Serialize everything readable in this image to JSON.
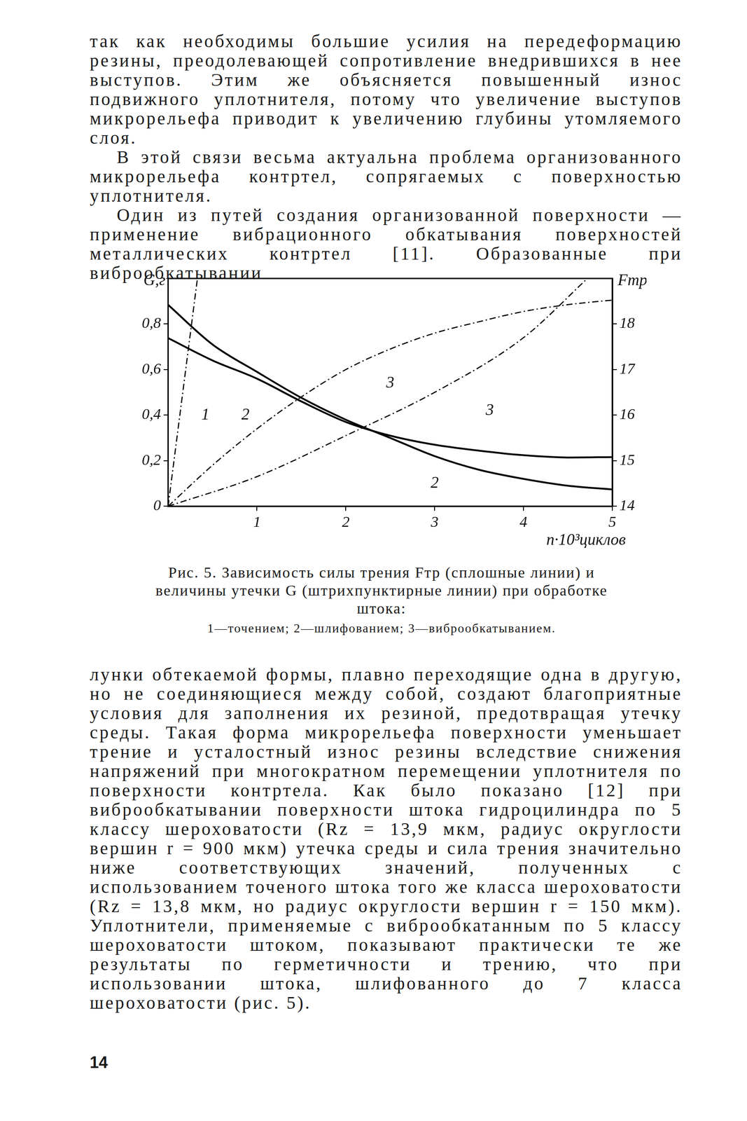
{
  "text": {
    "before": [
      "так как необходимы большие усилия на передеформацию резины, преодолевающей сопротивление внедрившихся в нее выступов. Этим же объясняется повышенный износ подвижного уплотнителя, потому что увеличение выступов микрорельефа приводит к увеличению глубины утомляемого слоя.",
      "В этой связи весьма актуальна проблема организованного микрорельефа контртел, сопрягаемых с поверхностью уплотнителя.",
      "Один из путей создания организованной поверхности — применение вибрационного обкатывания поверхностей металлических контртел [11]. Образованные при виброобкатывании"
    ],
    "after": [
      "лунки обтекаемой формы, плавно переходящие одна в другую, но не соединяющиеся между собой, создают благоприятные условия для заполнения их резиной, предотвращая утечку среды. Такая форма микрорельефа поверхности уменьшает трение и усталостный износ резины вследствие снижения напряжений при многократном перемещении уплотнителя по поверхности контртела. Как было показано [12] при виброобкатывании поверхности штока гидроцилиндра по 5 классу шероховатости (Rz = 13,9 мкм, радиус округлости вершин r = 900 мкм) утечка среды и сила трения значительно ниже соответствующих значений, полученных с использованием точеного штока того же класса шероховатости (Rz = 13,8 мкм, но радиус округлости вершин r = 150 мкм). Уплотнители, применяемые с виброобкатанным по 5 классу шероховатости штоком, показывают практически те же результаты по герметичности и трению, что при использовании штока, шлифованного до 7 класса шероховатости (рис. 5)."
    ],
    "page_number": "14"
  },
  "figure": {
    "caption": "Рис. 5. Зависимость силы трения Fтр (сплошные линии) и величины утечки G (штрихпунктирные линии) при обработке штока:",
    "key": "1—точением; 2—шлифованием; 3—виброобкатыванием."
  },
  "chart_data": {
    "type": "line",
    "xlabel": "n·10³циклов",
    "ylabel": "G,г",
    "y2label": "Fтр,Н",
    "xlim": [
      0,
      5
    ],
    "xticks": [
      1,
      2,
      3,
      4,
      5
    ],
    "ylim": [
      0,
      1
    ],
    "yticks": [
      0,
      {
        "value": 0.2,
        "label": "0,2"
      },
      {
        "value": 0.4,
        "label": "0,4"
      },
      {
        "value": 0.6,
        "label": "0,6"
      },
      {
        "value": 0.8,
        "label": "0,8"
      }
    ],
    "y2lim": [
      14,
      19
    ],
    "y2ticks": [
      14,
      15,
      16,
      17,
      18
    ],
    "grid": false,
    "series": [
      {
        "color": "#000000",
        "line_style": "dashdot",
        "axis": "y",
        "x": [
          0,
          0.33
        ],
        "values": [
          0,
          1.0
        ]
      },
      {
        "color": "#000000",
        "line_style": "dashdot",
        "axis": "y",
        "x": [
          0,
          0.5,
          1,
          1.5,
          2,
          2.5,
          3,
          3.5,
          4,
          4.5,
          5
        ],
        "values": [
          0,
          0.18,
          0.34,
          0.48,
          0.6,
          0.69,
          0.76,
          0.81,
          0.855,
          0.885,
          0.905
        ]
      },
      {
        "color": "#000000",
        "line_style": "dashdot",
        "axis": "y",
        "x": [
          0,
          1,
          2,
          3,
          4,
          4.72
        ],
        "values": [
          0,
          0.13,
          0.31,
          0.5,
          0.74,
          1.0
        ]
      },
      {
        "color": "#000000",
        "line_style": "solid",
        "axis": "y2",
        "x": [
          0,
          0.5,
          1,
          1.5,
          2,
          2.5,
          3,
          3.5,
          4,
          4.5,
          5
        ],
        "values": [
          18.42,
          17.55,
          16.95,
          16.38,
          15.9,
          15.5,
          15.1,
          14.8,
          14.6,
          14.45,
          14.37
        ]
      },
      {
        "color": "#000000",
        "line_style": "solid",
        "axis": "y2",
        "x": [
          0,
          0.5,
          1,
          1.5,
          2,
          2.5,
          3,
          3.5,
          4,
          4.5,
          5
        ],
        "values": [
          17.69,
          17.2,
          16.8,
          16.3,
          15.85,
          15.55,
          15.35,
          15.22,
          15.12,
          15.07,
          15.08
        ]
      }
    ],
    "annotations": [
      {
        "text": "1",
        "x": 0.42,
        "y": 0.4
      },
      {
        "text": "2",
        "x": 0.87,
        "y": 0.4
      },
      {
        "text": "3",
        "x": 2.5,
        "y": 0.54
      },
      {
        "text": "3",
        "x": 3.62,
        "y": 0.42
      },
      {
        "text": "2",
        "x": 3.0,
        "y": 0.1
      }
    ]
  }
}
